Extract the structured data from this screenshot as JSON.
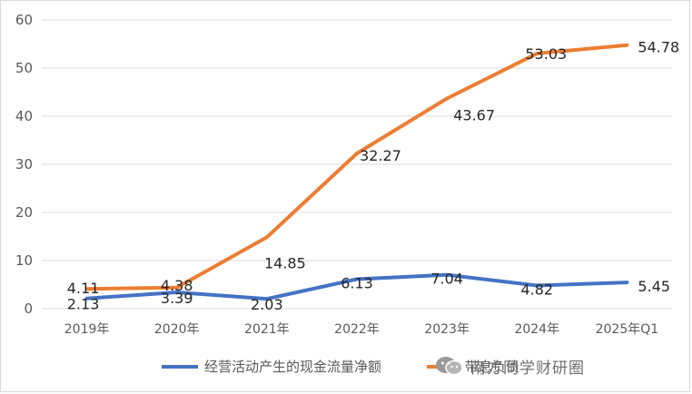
{
  "chart_data": {
    "type": "line",
    "categories": [
      "2019年",
      "2020年",
      "2021年",
      "2022年",
      "2023年",
      "2024年",
      "2025年Q1"
    ],
    "ylim": [
      0,
      60
    ],
    "yticks": [
      "0",
      "10",
      "20",
      "30",
      "40",
      "50",
      "60"
    ],
    "grid": "horizontal",
    "legend_position": "bottom-right",
    "series": [
      {
        "name": "经营活动产生的现金流量净额",
        "color": "#4472c4",
        "values": [
          2.13,
          3.39,
          2.03,
          6.13,
          7.04,
          4.82,
          5.45
        ],
        "labels": [
          "2.13",
          "3.39",
          "2.03",
          "6.13",
          "7.04",
          "4.82",
          "5.45"
        ]
      },
      {
        "name": "带息负债",
        "color": "#ed7d31",
        "values": [
          4.11,
          4.38,
          14.85,
          32.27,
          43.67,
          53.03,
          54.78
        ],
        "labels": [
          "4.11",
          "4.38",
          "14.85",
          "32.27",
          "43.67",
          "53.03",
          "54.78"
        ]
      }
    ]
  },
  "watermark": {
    "text": "南方同学财研圈",
    "icon": "wechat-icon"
  }
}
